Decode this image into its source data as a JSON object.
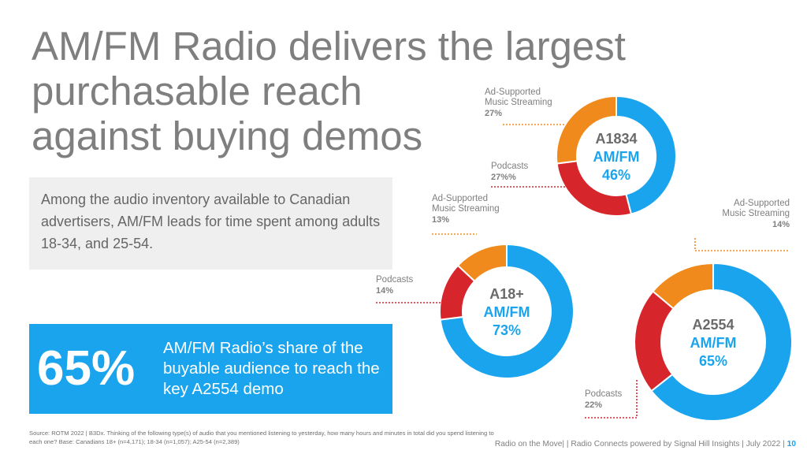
{
  "title_lines": [
    "AM/FM Radio delivers the largest",
    "purchasable reach",
    "against buying demos"
  ],
  "info_text": "Among the audio inventory available to Canadian advertisers, AM/FM leads for time spent among adults 18-34, and 25-54.",
  "highlight": {
    "value": "65%",
    "text": "AM/FM Radio’s share of the buyable audience to reach the key A2554 demo"
  },
  "source": "Source: ROTM 2022 | B3Dx. Thinking of the following type(s) of audio that you mentioned listening to yesterday, how many hours and minutes in total did you spend listening to each one? Base: Canadians 18+ (n=4,171); 18-34 (n=1,057); A25-54 (n=2,389)",
  "footer": {
    "text": "Radio on the Move| | Radio Connects powered by Signal Hill Insights | July 2022 |",
    "page": "10"
  },
  "colors": {
    "amfm": "#1aa4ed",
    "podcasts": "#d7262b",
    "streaming": "#f08a1c",
    "connector": "#d7262b",
    "connector_streaming": "#f08a1c"
  },
  "chart_data": [
    {
      "type": "pie",
      "donut": true,
      "demo": "A1834",
      "center_label": "AM/FM",
      "center_value": "46%",
      "slices": [
        {
          "label": "AM/FM",
          "value": 46
        },
        {
          "label": "Podcasts",
          "value": 27
        },
        {
          "label": "Ad-Supported Music Streaming",
          "value": 27
        }
      ],
      "annotations": [
        {
          "label_lines": [
            "Ad-Supported",
            "Music Streaming"
          ],
          "value_text": "27%"
        },
        {
          "label_lines": [
            "Podcasts"
          ],
          "value_text": "27%%"
        }
      ]
    },
    {
      "type": "pie",
      "donut": true,
      "demo": "A18+",
      "center_label": "AM/FM",
      "center_value": "73%",
      "slices": [
        {
          "label": "AM/FM",
          "value": 73
        },
        {
          "label": "Podcasts",
          "value": 14
        },
        {
          "label": "Ad-Supported Music Streaming",
          "value": 13
        }
      ],
      "annotations": [
        {
          "label_lines": [
            "Ad-Supported",
            "Music Streaming"
          ],
          "value_text": "13%"
        },
        {
          "label_lines": [
            "Podcasts"
          ],
          "value_text": "14%"
        }
      ]
    },
    {
      "type": "pie",
      "donut": true,
      "demo": "A2554",
      "center_label": "AM/FM",
      "center_value": "65%",
      "slices": [
        {
          "label": "AM/FM",
          "value": 65
        },
        {
          "label": "Podcasts",
          "value": 22
        },
        {
          "label": "Ad-Supported Music Streaming",
          "value": 14
        }
      ],
      "annotations": [
        {
          "label_lines": [
            "Ad-Supported",
            "Music Streaming"
          ],
          "value_text": "14%"
        },
        {
          "label_lines": [
            "Podcasts"
          ],
          "value_text": "22%"
        }
      ]
    }
  ]
}
